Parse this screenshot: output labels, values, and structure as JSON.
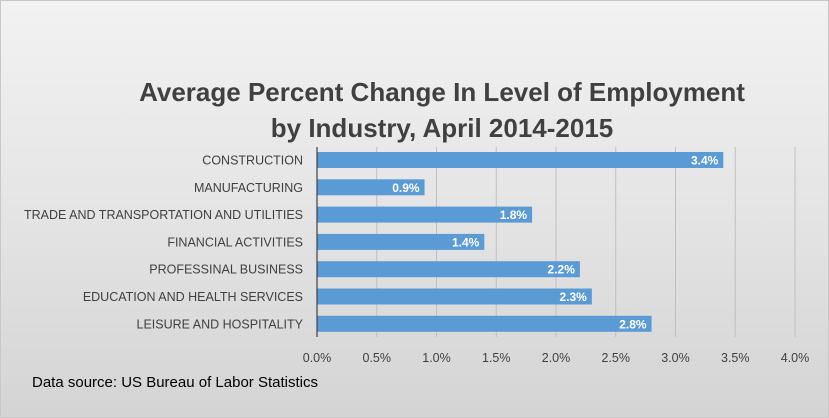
{
  "chart_data": {
    "type": "bar",
    "orientation": "horizontal",
    "title_lines": [
      "Average Percent Change In Level of Employment",
      "by Industry, April 2014-2015"
    ],
    "categories": [
      "CONSTRUCTION",
      "MANUFACTURING",
      "TRADE AND TRANSPORTATION AND UTILITIES",
      "FINANCIAL ACTIVITIES",
      "PROFESSINAL BUSINESS",
      "EDUCATION AND HEALTH SERVICES",
      "LEISURE AND HOSPITALITY"
    ],
    "values": [
      3.4,
      0.9,
      1.8,
      1.4,
      2.2,
      2.3,
      2.8
    ],
    "data_labels": [
      "3.4%",
      "0.9%",
      "1.8%",
      "1.4%",
      "2.2%",
      "2.3%",
      "2.8%"
    ],
    "xlim": [
      0,
      4.0
    ],
    "x_ticks": [
      0,
      0.5,
      1.0,
      1.5,
      2.0,
      2.5,
      3.0,
      3.5,
      4.0
    ],
    "x_tick_labels": [
      "0.0%",
      "0.5%",
      "1.0%",
      "1.5%",
      "2.0%",
      "2.5%",
      "3.0%",
      "3.5%",
      "4.0%"
    ],
    "grid": true,
    "legend": "none",
    "bar_color": "#5b9bd5",
    "grid_color": "#bfbfbf",
    "axis_color": "#404040"
  },
  "source_note": "Data source: US Bureau of Labor Statistics"
}
